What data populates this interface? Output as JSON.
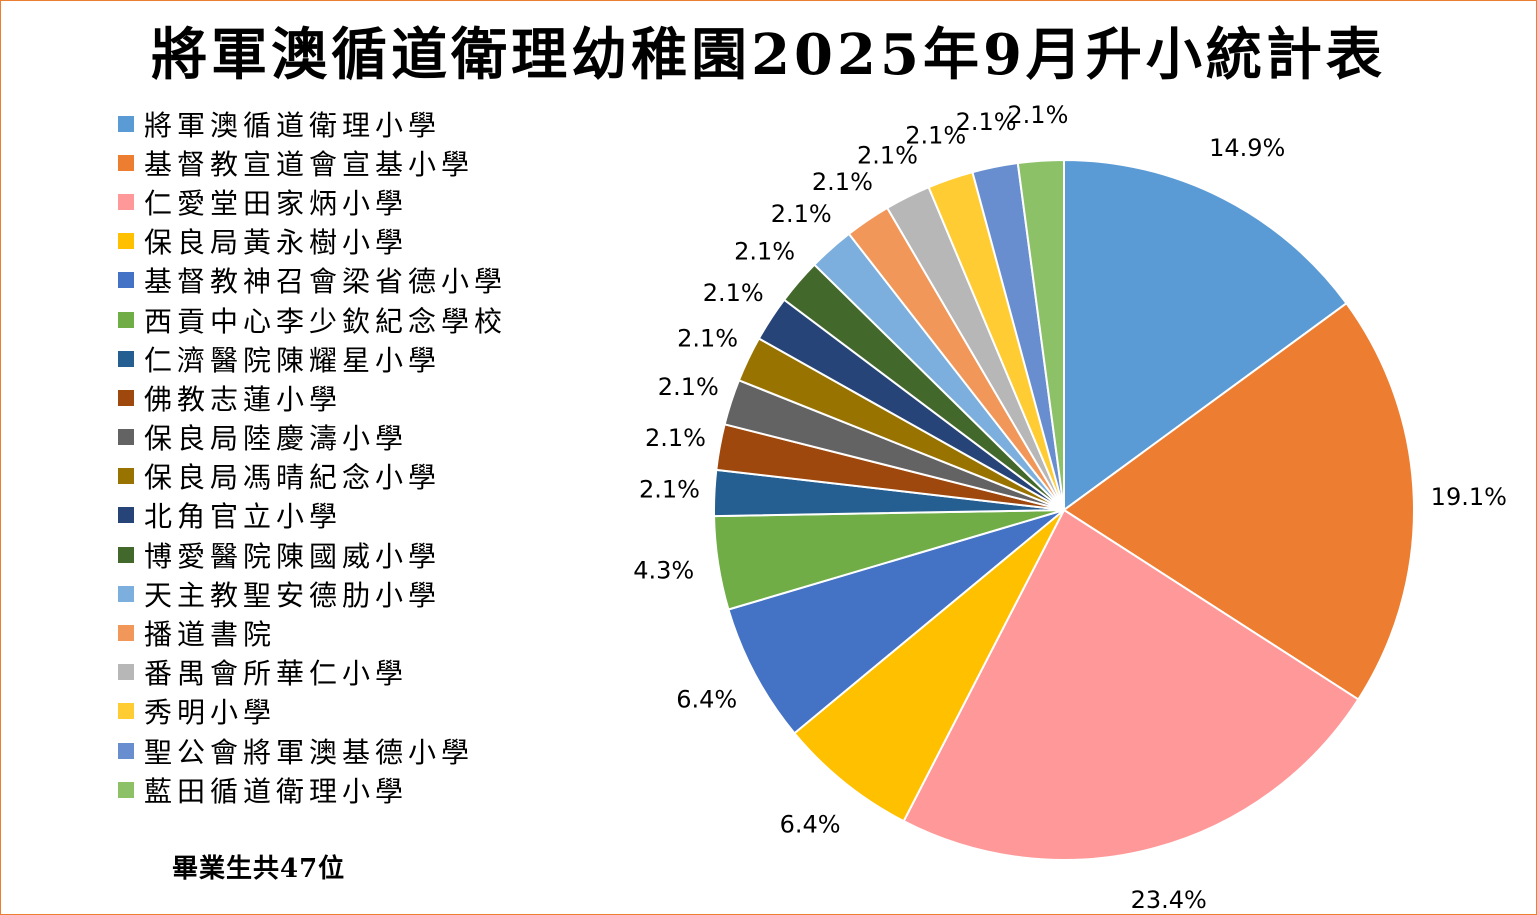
{
  "chart_data": {
    "type": "pie",
    "title": "將軍澳循道衛理幼稚園2025年9月升小統計表",
    "note": "畢業生共47位",
    "legend_position": "left",
    "slices": [
      {
        "label": "將軍澳循道衛理小學",
        "value": 14.9,
        "display": "14.9%",
        "color": "#5B9BD5"
      },
      {
        "label": "基督教宣道會宣基小學",
        "value": 19.1,
        "display": "19.1%",
        "color": "#ED7D31"
      },
      {
        "label": "仁愛堂田家炳小學",
        "value": 23.4,
        "display": "23.4%",
        "color": "#FF9999"
      },
      {
        "label": "保良局黃永樹小學",
        "value": 6.4,
        "display": "6.4%",
        "color": "#FFC000"
      },
      {
        "label": "基督教神召會梁省德小學",
        "value": 6.4,
        "display": "6.4%",
        "color": "#4472C4"
      },
      {
        "label": "西貢中心李少欽紀念學校",
        "value": 4.3,
        "display": "4.3%",
        "color": "#70AD47"
      },
      {
        "label": "仁濟醫院陳耀星小學",
        "value": 2.1,
        "display": "2.1%",
        "color": "#255E91"
      },
      {
        "label": "佛教志蓮小學",
        "value": 2.1,
        "display": "2.1%",
        "color": "#9E480E"
      },
      {
        "label": "保良局陸慶濤小學",
        "value": 2.1,
        "display": "2.1%",
        "color": "#636363"
      },
      {
        "label": "保良局馮晴紀念小學",
        "value": 2.1,
        "display": "2.1%",
        "color": "#997300"
      },
      {
        "label": "北角官立小學",
        "value": 2.1,
        "display": "2.1%",
        "color": "#264478"
      },
      {
        "label": "博愛醫院陳國威小學",
        "value": 2.1,
        "display": "2.1%",
        "color": "#43682B"
      },
      {
        "label": "天主教聖安德肋小學",
        "value": 2.1,
        "display": "2.1%",
        "color": "#7CAFDD"
      },
      {
        "label": "播道書院",
        "value": 2.1,
        "display": "2.1%",
        "color": "#F1975A"
      },
      {
        "label": "番禺會所華仁小學",
        "value": 2.1,
        "display": "2.1%",
        "color": "#B7B7B7"
      },
      {
        "label": "秀明小學",
        "value": 2.1,
        "display": "2.1%",
        "color": "#FFCD33"
      },
      {
        "label": "聖公會將軍澳基德小學",
        "value": 2.1,
        "display": "2.1%",
        "color": "#698ED0"
      },
      {
        "label": "藍田循道衛理小學",
        "value": 2.1,
        "display": "2.1%",
        "color": "#8CC168"
      }
    ]
  }
}
